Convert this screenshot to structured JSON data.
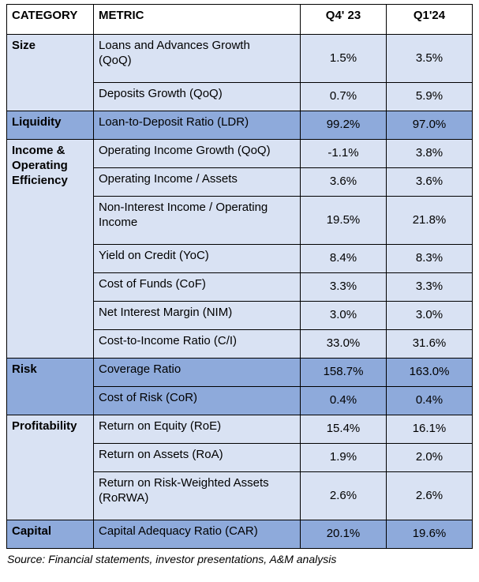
{
  "table": {
    "headers": {
      "category": "CATEGORY",
      "metric": "METRIC",
      "q4": "Q4' 23",
      "q1": "Q1'24"
    },
    "groups": [
      {
        "category": "Size",
        "shade": "light",
        "rows": [
          {
            "metric": "Loans and Advances Growth\n(QoQ)",
            "q4": "1.5%",
            "q1": "3.5%"
          },
          {
            "metric": "Deposits Growth (QoQ)",
            "q4": "0.7%",
            "q1": "5.9%"
          }
        ]
      },
      {
        "category": "Liquidity",
        "shade": "dark",
        "rows": [
          {
            "metric": "Loan-to-Deposit Ratio (LDR)",
            "q4": "99.2%",
            "q1": "97.0%"
          }
        ]
      },
      {
        "category": "Income &\nOperating\nEfficiency",
        "shade": "light",
        "rows": [
          {
            "metric": "Operating Income Growth (QoQ)",
            "q4": "-1.1%",
            "q1": "3.8%"
          },
          {
            "metric": "Operating Income / Assets",
            "q4": "3.6%",
            "q1": "3.6%"
          },
          {
            "metric": "Non-Interest Income / Operating\nIncome",
            "q4": "19.5%",
            "q1": "21.8%"
          },
          {
            "metric": "Yield on Credit (YoC)",
            "q4": "8.4%",
            "q1": "8.3%"
          },
          {
            "metric": "Cost of Funds (CoF)",
            "q4": "3.3%",
            "q1": "3.3%"
          },
          {
            "metric": "Net Interest Margin (NIM)",
            "q4": "3.0%",
            "q1": "3.0%"
          },
          {
            "metric": "Cost-to-Income Ratio (C/I)",
            "q4": "33.0%",
            "q1": "31.6%"
          }
        ]
      },
      {
        "category": "Risk",
        "shade": "dark",
        "rows": [
          {
            "metric": "Coverage Ratio",
            "q4": "158.7%",
            "q1": "163.0%"
          },
          {
            "metric": "Cost of Risk (CoR)",
            "q4": "0.4%",
            "q1": "0.4%"
          }
        ]
      },
      {
        "category": "Profitability",
        "shade": "light",
        "rows": [
          {
            "metric": "Return on Equity (RoE)",
            "q4": "15.4%",
            "q1": "16.1%"
          },
          {
            "metric": "Return on Assets (RoA)",
            "q4": "1.9%",
            "q1": "2.0%"
          },
          {
            "metric": "Return on Risk-Weighted Assets\n(RoRWA)",
            "q4": "2.6%",
            "q1": "2.6%"
          }
        ]
      },
      {
        "category": "Capital",
        "shade": "dark",
        "rows": [
          {
            "metric": "Capital Adequacy Ratio (CAR)",
            "q4": "20.1%",
            "q1": "19.6%"
          }
        ]
      }
    ]
  },
  "footer": {
    "source": "Source: Financial statements, investor presentations, A&M analysis"
  },
  "colors": {
    "light_row": "#D9E2F3",
    "dark_row": "#8EAADB",
    "header_bg": "#FFFFFF",
    "border": "#000000",
    "text": "#000000"
  }
}
